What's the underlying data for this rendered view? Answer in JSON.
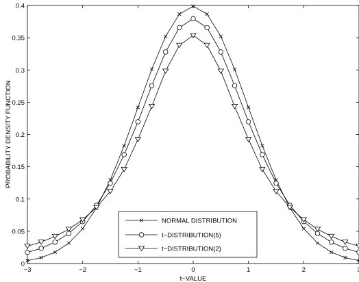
{
  "chart_data": {
    "type": "line",
    "xlabel": "t−VALUE",
    "ylabel": "PROBABILITY DENSITY FUNCTION",
    "xlim": [
      -3,
      3
    ],
    "ylim": [
      0,
      0.4
    ],
    "x_ticks": [
      -3,
      -2,
      -1,
      0,
      1,
      2,
      3
    ],
    "x_tick_labels": [
      "−3",
      "−2",
      "−1",
      "0",
      "1",
      "2",
      "3"
    ],
    "y_ticks": [
      0,
      0.05,
      0.1,
      0.15,
      0.2,
      0.25,
      0.3,
      0.35,
      0.4
    ],
    "y_tick_labels": [
      "0",
      "0.05",
      "0.1",
      "0.15",
      "0.2",
      "0.25",
      "0.3",
      "0.35",
      "0.4"
    ],
    "grid": false,
    "legend_position": "bottom-center",
    "x": [
      -3,
      -2.75,
      -2.5,
      -2.25,
      -2,
      -1.75,
      -1.5,
      -1.25,
      -1,
      -0.75,
      -0.5,
      -0.25,
      0,
      0.25,
      0.5,
      0.75,
      1,
      1.25,
      1.5,
      1.75,
      2,
      2.25,
      2.5,
      2.75,
      3
    ],
    "series": [
      {
        "name": "NORMAL DISTRIBUTION",
        "marker": "x",
        "values": [
          0.0044,
          0.0091,
          0.0175,
          0.0317,
          0.054,
          0.0863,
          0.1295,
          0.1826,
          0.242,
          0.3011,
          0.3521,
          0.3867,
          0.3989,
          0.3867,
          0.3521,
          0.3011,
          0.242,
          0.1826,
          0.1295,
          0.0863,
          0.054,
          0.0317,
          0.0175,
          0.0091,
          0.0044
        ]
      },
      {
        "name": "t−DISTRIBUTION(5)",
        "marker": "circle",
        "values": [
          0.0173,
          0.0236,
          0.0332,
          0.0466,
          0.0651,
          0.0902,
          0.1245,
          0.1688,
          0.2197,
          0.2757,
          0.3279,
          0.3656,
          0.3796,
          0.3656,
          0.3279,
          0.2757,
          0.2197,
          0.1688,
          0.1245,
          0.0902,
          0.0651,
          0.0466,
          0.0332,
          0.0236,
          0.0173
        ]
      },
      {
        "name": "t−DISTRIBUTION(2)",
        "marker": "triangle-down",
        "values": [
          0.0269,
          0.0333,
          0.0422,
          0.0532,
          0.068,
          0.0869,
          0.1119,
          0.1459,
          0.1925,
          0.2436,
          0.2983,
          0.3383,
          0.3536,
          0.3383,
          0.2983,
          0.2436,
          0.1925,
          0.1459,
          0.1119,
          0.0869,
          0.068,
          0.0532,
          0.0422,
          0.0333,
          0.0269
        ]
      }
    ]
  }
}
